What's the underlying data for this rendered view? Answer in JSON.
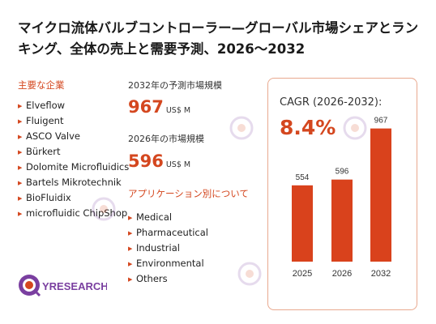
{
  "title": "マイクロ流体バルブコントローラー—グローバル市場シェアとランキング、全体の売上と需要予測、2026〜2032",
  "companies_label": "主要な企業",
  "companies": [
    "Elveflow",
    "Fluigent",
    "ASCO Valve",
    "Bürkert",
    "Dolomite Microfluidics",
    "Bartels Mikrotechnik",
    "BioFluidix",
    "microfluidic ChipShop"
  ],
  "forecast": {
    "label": "2032年の予測市場規模",
    "value": "967",
    "unit": "US$ M"
  },
  "current": {
    "label": "2026年の市場規模",
    "value": "596",
    "unit": "US$ M"
  },
  "applications_label": "アプリケーション別について",
  "applications": [
    "Medical",
    "Pharmaceutical",
    "Industrial",
    "Environmental",
    "Others"
  ],
  "cagr": {
    "label": "CAGR (2026-2032):",
    "value": "8.4%"
  },
  "colors": {
    "accent": "#d4471f",
    "bar": "#d9421c",
    "card_border": "#e9a98f"
  },
  "logo": {
    "text_q": "Q",
    "text_rest": "YRESEARCH"
  },
  "chart_data": {
    "type": "bar",
    "categories": [
      "2025",
      "2026",
      "2032"
    ],
    "values": [
      554,
      596,
      967
    ],
    "title": "",
    "xlabel": "",
    "ylabel": "",
    "ylim": [
      0,
      1000
    ],
    "grid": false
  }
}
